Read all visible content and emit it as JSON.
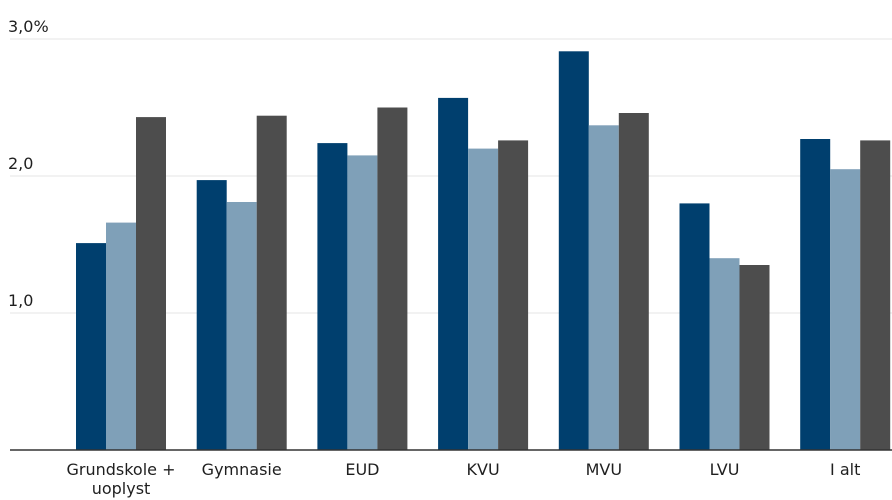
{
  "chart_data": {
    "type": "bar",
    "categories": [
      [
        "Grundskole +",
        "uoplyst"
      ],
      [
        "Gymnasie"
      ],
      [
        "EUD"
      ],
      [
        "KVU"
      ],
      [
        "MVU"
      ],
      [
        "LVU"
      ],
      [
        "I alt"
      ]
    ],
    "series": [
      {
        "values": [
          1.51,
          1.97,
          2.24,
          2.57,
          2.91,
          1.8,
          2.27
        ],
        "color": "#003f6e"
      },
      {
        "values": [
          1.66,
          1.81,
          2.15,
          2.2,
          2.37,
          1.4,
          2.05
        ],
        "color": "#7fa0b8"
      },
      {
        "values": [
          2.43,
          2.44,
          2.5,
          2.26,
          2.46,
          1.35,
          2.26
        ],
        "color": "#4d4d4d"
      }
    ],
    "y_ticks": [
      {
        "value": 1.0,
        "label": "1,0"
      },
      {
        "value": 2.0,
        "label": "2,0"
      },
      {
        "value": 3.0,
        "label": "3,0%"
      }
    ],
    "title": "",
    "xlabel": "",
    "ylabel": "",
    "ylim": [
      0,
      3.0
    ],
    "grid": true,
    "legend": "none"
  }
}
